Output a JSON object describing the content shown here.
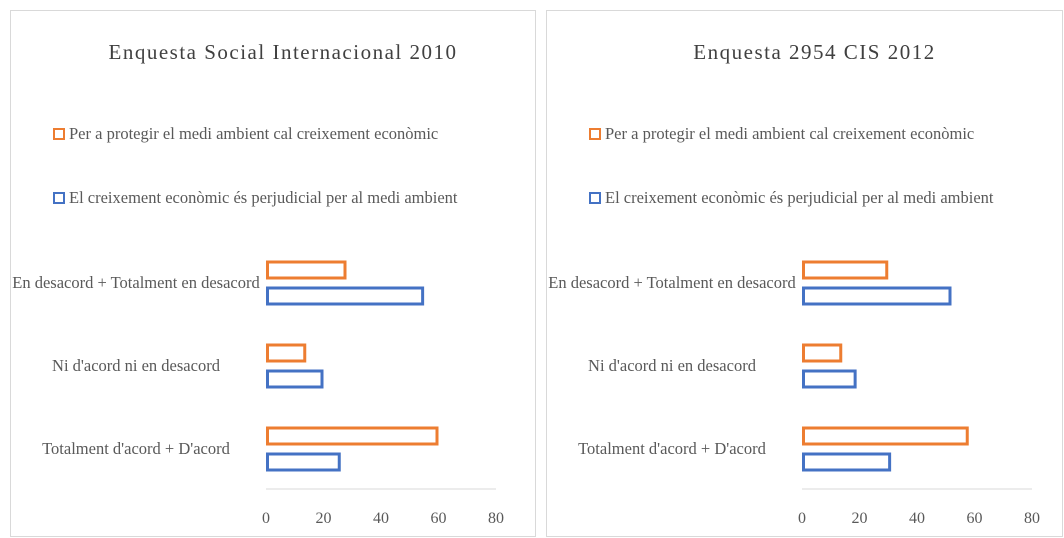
{
  "chart_data": [
    {
      "type": "bar",
      "orientation": "horizontal",
      "title": "Enquesta  Social Internacional 2010",
      "categories": [
        "En desacord + Totalment en desacord",
        "Ni d'acord ni en desacord",
        "Totalment d'acord + D'acord"
      ],
      "series": [
        {
          "name": "Per a protegir el medi ambient cal creixement econòmic",
          "color": "#ED7D31",
          "values": [
            28,
            14,
            60
          ]
        },
        {
          "name": "El creixement econòmic és perjudicial per al medi ambient",
          "color": "#4472C4",
          "values": [
            55,
            20,
            26
          ]
        }
      ],
      "xlim": [
        0,
        80
      ],
      "xticks": [
        0,
        20,
        40,
        60,
        80
      ],
      "grid": false,
      "legend": "top"
    },
    {
      "type": "bar",
      "orientation": "horizontal",
      "title": "Enquesta  2954 CIS 2012",
      "categories": [
        "En desacord + Totalment en desacord",
        "Ni d'acord ni en desacord",
        "Totalment d'acord + D'acord"
      ],
      "series": [
        {
          "name": "Per a protegir el medi ambient cal creixement econòmic",
          "color": "#ED7D31",
          "values": [
            30,
            14,
            58
          ]
        },
        {
          "name": "El creixement econòmic és perjudicial per al medi ambient",
          "color": "#4472C4",
          "values": [
            52,
            19,
            31
          ]
        }
      ],
      "xlim": [
        0,
        80
      ],
      "xticks": [
        0,
        20,
        40,
        60,
        80
      ],
      "grid": false,
      "legend": "top"
    }
  ]
}
